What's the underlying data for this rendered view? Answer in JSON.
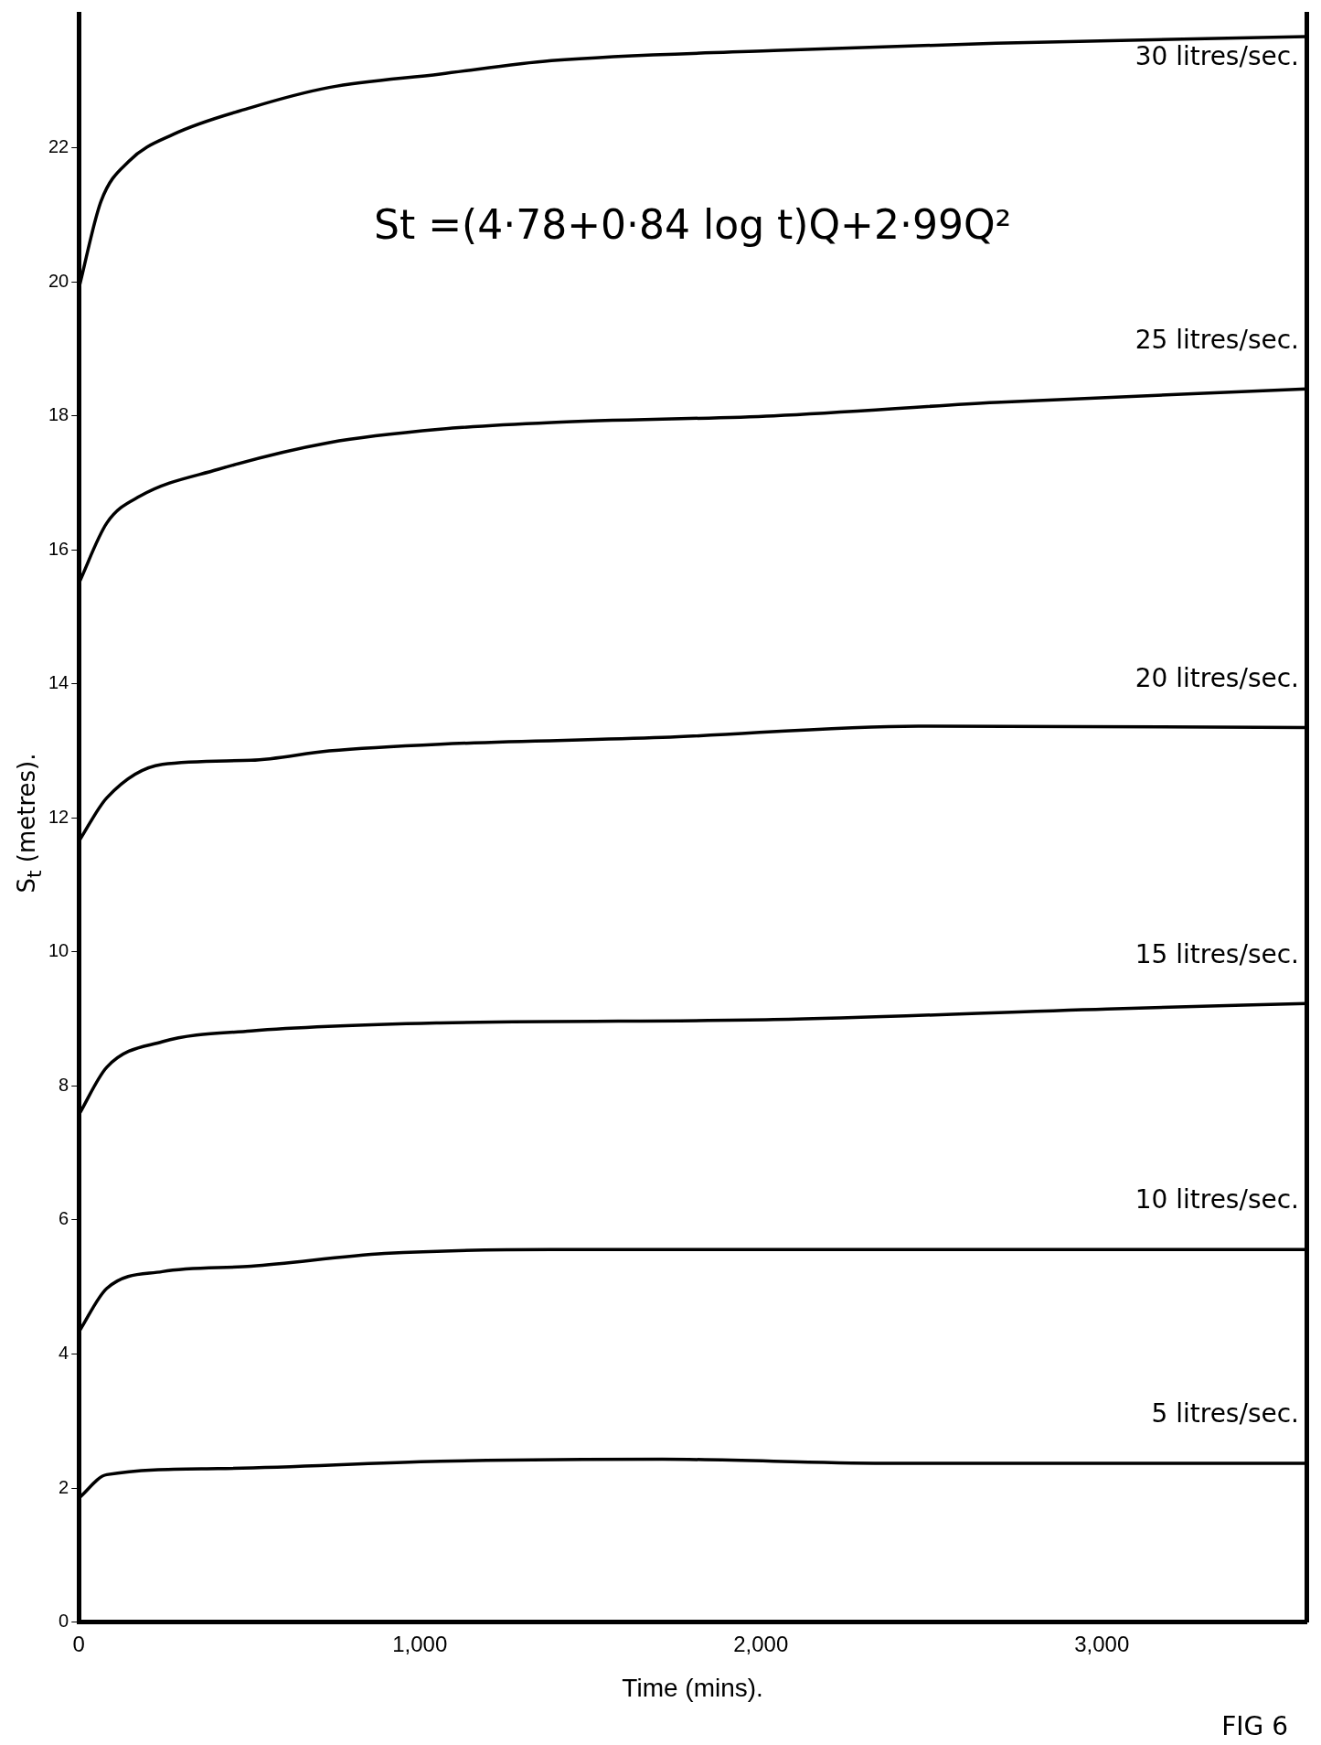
{
  "chart_data": {
    "type": "line",
    "xlabel": "Time (mins).",
    "ylabel": "S$_{t}$ (metres).",
    "annotations": [
      "St =(4·78+0·84 log t)Q+2·99Q²",
      "FIG 6"
    ],
    "xlim": [
      0,
      3600
    ],
    "ylim": [
      0,
      24
    ],
    "xticks": [
      0,
      {
        "value": 1000,
        "label": "1,000"
      },
      {
        "value": 2000,
        "label": "2,000"
      },
      {
        "value": 3000,
        "label": "3,000"
      }
    ],
    "yticks": [
      0,
      2,
      4,
      6,
      8,
      10,
      12,
      14,
      16,
      18,
      20,
      22
    ],
    "grid": false,
    "legend": false,
    "marker": "none",
    "line_style": "solid",
    "series": [
      {
        "name": "30 litres/sec.",
        "color": "#000000",
        "x": [
          0,
          65,
          147,
          277,
          505,
          734,
          1060,
          1386,
          2038,
          2690,
          3600
        ],
        "values": [
          19.9,
          21.2,
          21.8,
          22.2,
          22.6,
          22.9,
          23.1,
          23.3,
          23.45,
          23.56,
          23.66
        ]
      },
      {
        "name": "25 litres/sec.",
        "color": "#000000",
        "x": [
          0,
          82,
          179,
          408,
          734,
          1060,
          1386,
          2038,
          2690,
          3600
        ],
        "values": [
          15.5,
          16.4,
          16.8,
          17.2,
          17.6,
          17.8,
          17.9,
          18.0,
          18.2,
          18.4
        ]
      },
      {
        "name": "20 litres/sec.",
        "color": "#000000",
        "x": [
          0,
          82,
          245,
          505,
          734,
          1060,
          1712,
          2462,
          3600
        ],
        "values": [
          11.65,
          12.3,
          12.8,
          12.86,
          13.0,
          13.1,
          13.2,
          13.37,
          13.35
        ]
      },
      {
        "name": "15 litres/sec.",
        "color": "#000000",
        "x": [
          0,
          82,
          245,
          505,
          1060,
          2038,
          3016,
          3600
        ],
        "values": [
          7.57,
          8.28,
          8.66,
          8.82,
          8.94,
          8.99,
          9.15,
          9.23
        ]
      },
      {
        "name": "10 litres/sec.",
        "color": "#000000",
        "x": [
          0,
          82,
          245,
          505,
          897,
          1386,
          3600
        ],
        "values": [
          4.33,
          4.98,
          5.23,
          5.31,
          5.5,
          5.56,
          5.56
        ]
      },
      {
        "name": "5 litres/sec.",
        "color": "#000000",
        "x": [
          0,
          82,
          408,
          1060,
          1712,
          2364,
          3600
        ],
        "values": [
          1.85,
          2.2,
          2.29,
          2.4,
          2.43,
          2.37,
          2.37
        ]
      }
    ]
  }
}
